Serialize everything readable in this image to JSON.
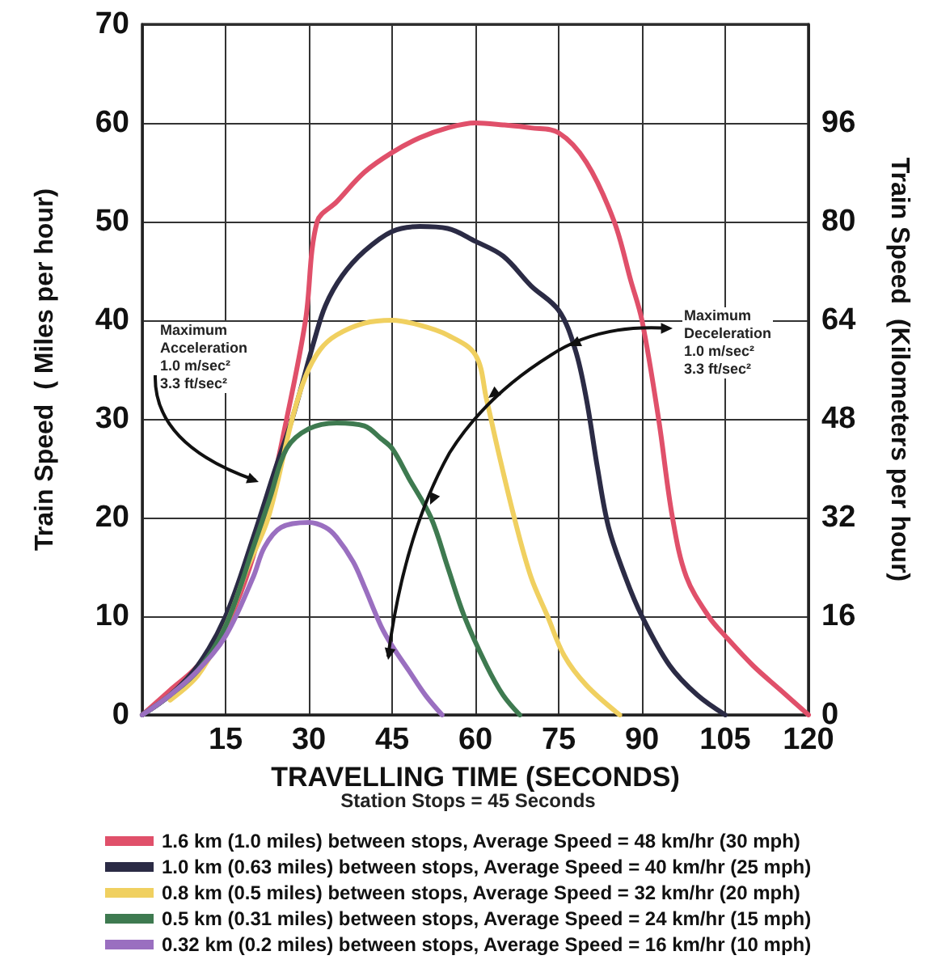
{
  "chart_data": {
    "type": "line",
    "xlabel": "TRAVELLING TIME (SECONDS)",
    "ylabel": "Train Speed  ( Miles per hour)",
    "y2label": "Train Speed  (Kilometers per hour)",
    "annotations": [
      "Station Stops = 45 Seconds",
      "Maximum\nAcceleration\n1.0 m/sec²\n3.3 ft/sec²",
      "Maximum\nDeceleration\n1.0 m/sec²\n3.3 ft/sec²"
    ],
    "xlim": [
      0,
      120
    ],
    "xticks": [
      {
        "value": 0,
        "label": null
      },
      15,
      30,
      45,
      60,
      75,
      90,
      105,
      120
    ],
    "ylim": [
      0,
      70
    ],
    "yticks": [
      0,
      10,
      20,
      30,
      40,
      50,
      60,
      70
    ],
    "y2lim": [
      0,
      112
    ],
    "y2ticks": [
      0,
      16,
      32,
      48,
      64,
      80,
      96
    ],
    "grid": true,
    "legend": "bottom",
    "marker": "none",
    "line_style": "solid",
    "series": [
      {
        "name": "1.6 km (1.0 miles) between stops, Average Speed = 48 km/hr (30 mph)",
        "color": "#e0506a",
        "x": [
          0,
          5,
          10,
          16,
          22,
          26,
          29.4,
          31.5,
          35,
          40,
          45,
          50,
          55,
          60,
          65,
          70,
          75,
          80,
          85,
          88,
          90,
          93,
          95.5,
          98,
          102,
          105,
          110,
          115,
          120
        ],
        "values": [
          0,
          2.5,
          5,
          10,
          20,
          30,
          40,
          50,
          52,
          55,
          57,
          58.5,
          59.5,
          60,
          59.8,
          59.5,
          59,
          56,
          50,
          44,
          40,
          30,
          20,
          14,
          10,
          8,
          5,
          2.5,
          0
        ]
      },
      {
        "name": "1.0 km (0.63 miles) between stops, Average Speed = 40 km/hr (25 mph)",
        "color": "#2b2b45",
        "x": [
          0,
          5,
          10,
          15,
          20,
          24,
          27,
          31,
          33,
          36,
          40,
          45,
          50,
          55,
          60,
          65,
          70,
          75,
          78,
          80,
          82,
          84,
          87,
          90,
          95,
          100,
          105
        ],
        "values": [
          0,
          2,
          5,
          10,
          18,
          25,
          30,
          38,
          41.5,
          44.5,
          47,
          49,
          49.5,
          49.3,
          48,
          46.5,
          43.5,
          41,
          37,
          32,
          25,
          19,
          14,
          10,
          5,
          2,
          0
        ]
      },
      {
        "name": "0.8 km (0.5 miles) between stops, Average Speed = 32 km/hr (20 mph)",
        "color": "#f0d060",
        "x": [
          5,
          10,
          15,
          19,
          22.7,
          27,
          29.4,
          32,
          35,
          40,
          45,
          50,
          55,
          60,
          62,
          64,
          67,
          70,
          73,
          76,
          80,
          86
        ],
        "values": [
          1.5,
          4,
          9,
          15,
          20,
          30,
          34.3,
          37,
          38.5,
          39.7,
          40,
          39.5,
          38.5,
          36.5,
          32,
          27,
          20,
          14,
          10,
          6,
          3,
          0
        ]
      },
      {
        "name": "0.5 km (0.31 miles) between stops, Average Speed = 24 km/hr (15 mph)",
        "color": "#3e7a50",
        "x": [
          0,
          5,
          10,
          15,
          20,
          23,
          26,
          30,
          35,
          40,
          43,
          45,
          48,
          52,
          55,
          58,
          62,
          65,
          68
        ],
        "values": [
          0,
          2,
          4.5,
          9,
          17,
          22,
          27,
          29,
          29.6,
          29.3,
          28,
          27,
          24,
          20,
          15,
          10,
          5,
          2,
          0
        ]
      },
      {
        "name": "0.32 km (0.2 miles) between stops, Average Speed = 16 km/hr (10 mph)",
        "color": "#9a6fc0",
        "x": [
          0,
          5,
          10,
          15,
          20,
          22,
          25,
          30,
          33,
          35,
          38,
          40,
          43,
          45,
          48,
          51,
          54
        ],
        "values": [
          0,
          2,
          4.5,
          8,
          14,
          17,
          19,
          19.5,
          19,
          18,
          15.5,
          13,
          9,
          7,
          4.5,
          2,
          0
        ]
      }
    ]
  }
}
